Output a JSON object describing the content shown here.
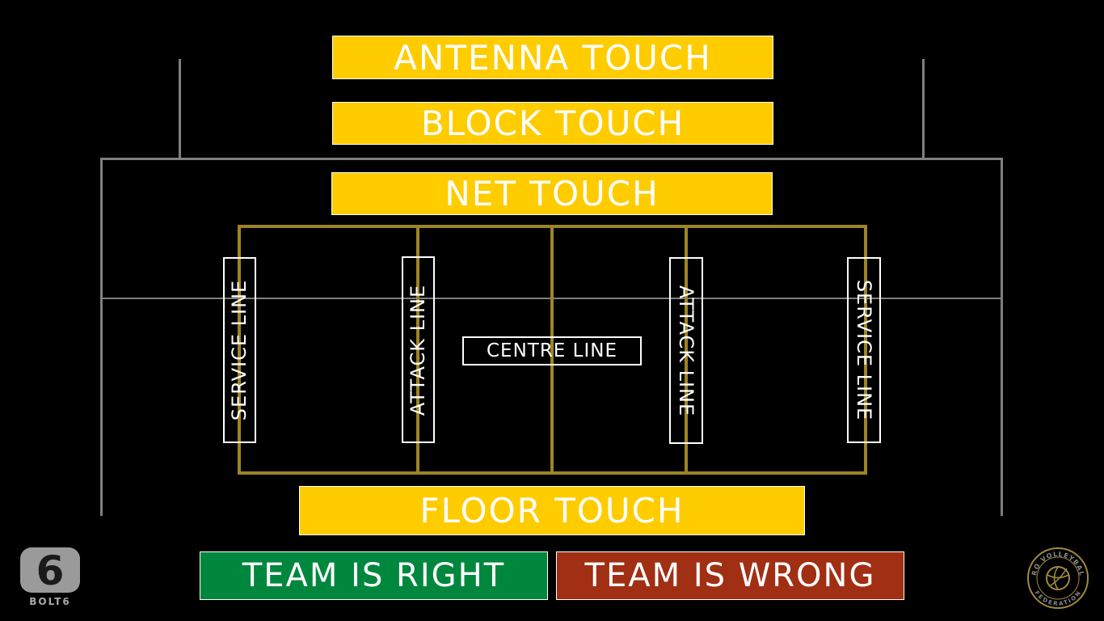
{
  "buttons": {
    "antenna_touch": "ANTENNA TOUCH",
    "block_touch": "BLOCK TOUCH",
    "net_touch": "NET TOUCH",
    "floor_touch": "FLOOR TOUCH",
    "team_is_right": "TEAM IS RIGHT",
    "team_is_wrong": "TEAM IS WRONG"
  },
  "court_labels": {
    "service_line_left": "SERVICE LINE",
    "attack_line_left": "ATTACK LINE",
    "centre_line": "CENTRE LINE",
    "attack_line_right": "ATTACK LINE",
    "service_line_right": "SERVICE LINE"
  },
  "logos": {
    "bolt6_text": "BOLT6",
    "bolt6_digit": "6",
    "pvf_text_top": "PRO VOLLEYBALL",
    "pvf_text_bottom": "FEDERATION"
  },
  "colors": {
    "touch_buttons": "#ffcc00",
    "team_right": "#00873e",
    "team_wrong": "#a02f14",
    "court_lines": "#9d8424",
    "net_lines": "#7f7f7f"
  }
}
